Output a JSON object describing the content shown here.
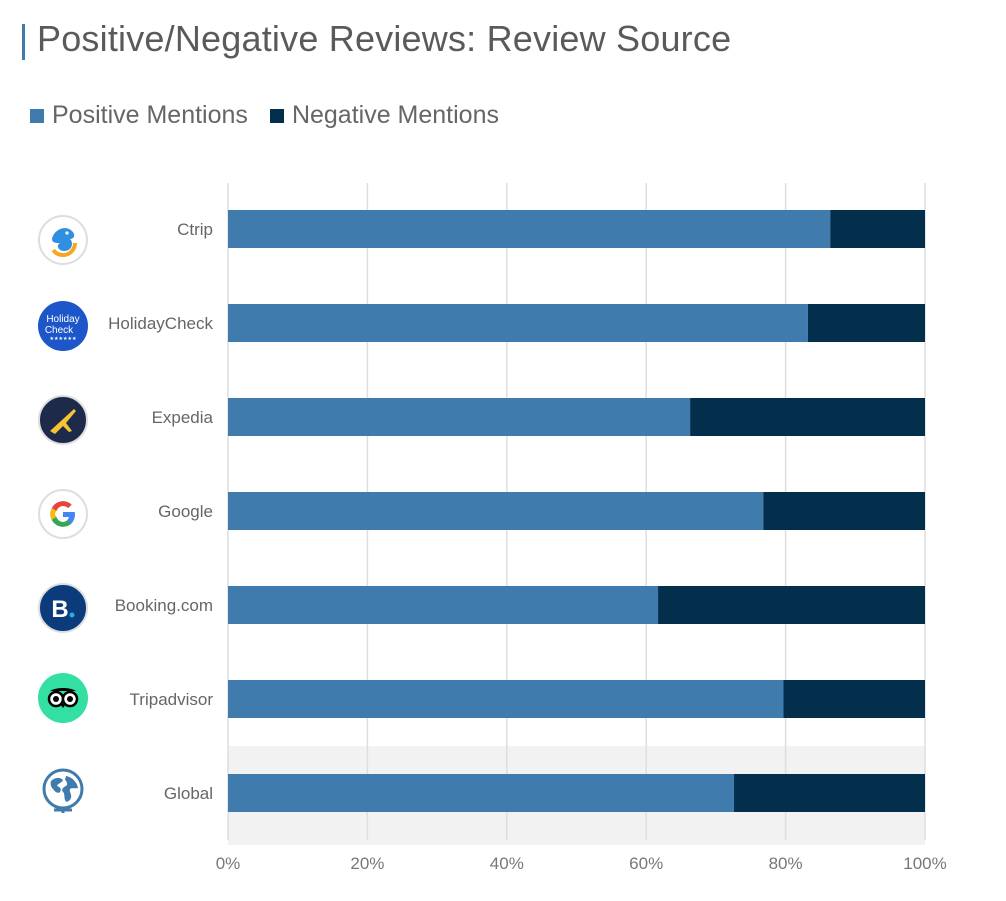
{
  "title": "Positive/Negative Reviews: Review Source",
  "colors": {
    "positive": "#3f7bad",
    "negative": "#032e4c",
    "accent": "#3f7bad",
    "highlight_band": "#f2f2f2"
  },
  "legend": [
    {
      "label": "Positive Mentions",
      "color": "#3f7bad"
    },
    {
      "label": "Negative Mentions",
      "color": "#032e4c"
    }
  ],
  "logos": [
    {
      "name": "ctrip-logo-icon"
    },
    {
      "name": "holidaycheck-logo-icon",
      "text_line1": "Holiday",
      "text_line2": "Check"
    },
    {
      "name": "expedia-logo-icon"
    },
    {
      "name": "google-logo-icon"
    },
    {
      "name": "booking-logo-icon",
      "letter": "B"
    },
    {
      "name": "tripadvisor-logo-icon"
    },
    {
      "name": "globe-icon"
    }
  ],
  "chart_data": {
    "type": "bar",
    "orientation": "horizontal",
    "stacked": true,
    "normalized": true,
    "categories": [
      "Ctrip",
      "HolidayCheck",
      "Expedia",
      "Google",
      "Booking.com",
      "Tripadvisor",
      "Global"
    ],
    "series": [
      {
        "name": "Positive Mentions",
        "values": [
          86.4,
          83.2,
          66.3,
          76.8,
          61.7,
          79.7,
          72.6
        ]
      },
      {
        "name": "Negative Mentions",
        "values": [
          13.6,
          16.8,
          33.7,
          23.2,
          38.3,
          20.3,
          27.4
        ]
      }
    ],
    "xlim": [
      0,
      100
    ],
    "xticks": [
      "0%",
      "20%",
      "40%",
      "60%",
      "80%",
      "100%"
    ],
    "xtick_values": [
      0,
      20,
      40,
      60,
      80,
      100
    ],
    "highlighted_category": "Global",
    "grid": true,
    "legend_position": "top-left"
  }
}
